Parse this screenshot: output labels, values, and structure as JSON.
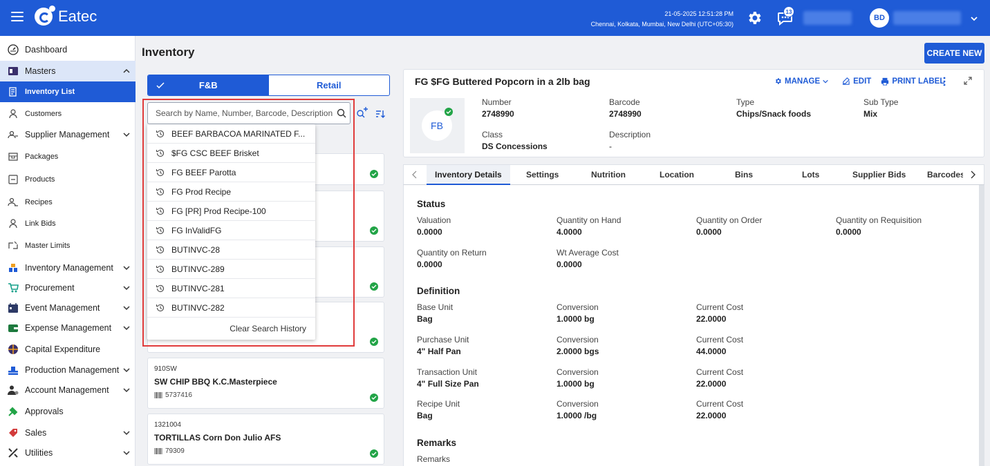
{
  "app": {
    "name": "Eatec",
    "datetime": "21-05-2025 12:51:28 PM",
    "timezone": "Chennai, Kolkata, Mumbai, New Delhi (UTC+05:30)",
    "notifications": "13",
    "user_initials": "BD"
  },
  "sidebar": {
    "items": [
      {
        "label": "Dashboard",
        "icon": "dashboard-icon"
      },
      {
        "label": "Masters",
        "icon": "masters-icon",
        "expanded": true
      },
      {
        "label": "Inventory List",
        "icon": "inventory-list-icon",
        "active": true
      },
      {
        "label": "Customers",
        "icon": "customers-icon"
      },
      {
        "label": "Supplier Management",
        "icon": "supplier-icon"
      },
      {
        "label": "Packages",
        "icon": "packages-icon"
      },
      {
        "label": "Products",
        "icon": "products-icon"
      },
      {
        "label": "Recipes",
        "icon": "recipes-icon"
      },
      {
        "label": "Link Bids",
        "icon": "link-bids-icon"
      },
      {
        "label": "Master Limits",
        "icon": "master-limits-icon"
      },
      {
        "label": "Inventory Management",
        "icon": "inventory-mgmt-icon"
      },
      {
        "label": "Procurement",
        "icon": "procurement-icon"
      },
      {
        "label": "Event Management",
        "icon": "event-icon"
      },
      {
        "label": "Expense Management",
        "icon": "expense-icon"
      },
      {
        "label": "Capital Expenditure",
        "icon": "capex-icon"
      },
      {
        "label": "Production Management",
        "icon": "production-icon"
      },
      {
        "label": "Account Management",
        "icon": "account-icon"
      },
      {
        "label": "Approvals",
        "icon": "approvals-icon"
      },
      {
        "label": "Sales",
        "icon": "sales-icon"
      },
      {
        "label": "Utilities",
        "icon": "utilities-icon"
      }
    ]
  },
  "main": {
    "title": "Inventory",
    "create_label": "CREATE NEW",
    "toggle": {
      "fb": "F&B",
      "retail": "Retail"
    },
    "search": {
      "placeholder": "Search by Name, Number, Barcode, Description",
      "value": ""
    },
    "search_history": [
      "BEEF BARBACOA MARINATED F...",
      "$FG CSC BEEF Brisket",
      "FG BEEF Parotta",
      "FG Prod Recipe",
      "FG [PR] Prod Recipe-100",
      "FG InValidFG",
      "BUTINVC-28",
      "BUTINVC-289",
      "BUTINVC-281",
      "BUTINVC-282"
    ],
    "clear_history": "Clear Search History",
    "cards": [
      {
        "number": "",
        "name": "",
        "barcode": ""
      },
      {
        "number": "",
        "name": "",
        "barcode": ""
      },
      {
        "number": "",
        "name": "",
        "barcode": ""
      },
      {
        "number": "",
        "name": "",
        "barcode": ""
      },
      {
        "number": "910SW",
        "name": "SW CHIP BBQ K.C.Masterpiece",
        "barcode": "5737416"
      },
      {
        "number": "1321004",
        "name": "TORTILLAS Corn Don Julio AFS",
        "barcode": "79309"
      }
    ]
  },
  "detail": {
    "title": "FG $FG Buttered Popcorn in a 2lb bag",
    "manage": "MANAGE",
    "edit": "EDIT",
    "print": "PRINT LABEL",
    "thumb": "FB",
    "number_label": "Number",
    "number": "2748990",
    "barcode_label": "Barcode",
    "barcode": "2748990",
    "type_label": "Type",
    "type": "Chips/Snack foods",
    "subtype_label": "Sub Type",
    "subtype": "Mix",
    "class_label": "Class",
    "class": "DS Concessions",
    "desc_label": "Description",
    "desc": "-",
    "tabs": [
      "Inventory Details",
      "Settings",
      "Nutrition",
      "Location",
      "Bins",
      "Lots",
      "Supplier Bids",
      "Barcodes"
    ],
    "status": {
      "title": "Status",
      "valuation_label": "Valuation",
      "valuation": "0.0000",
      "qoh_label": "Quantity on Hand",
      "qoh": "4.0000",
      "qoo_label": "Quantity on Order",
      "qoo": "0.0000",
      "qor_label": "Quantity on Requisition",
      "qor": "0.0000",
      "qret_label": "Quantity on Return",
      "qret": "0.0000",
      "wac_label": "Wt Average Cost",
      "wac": "0.0000"
    },
    "definition": {
      "title": "Definition",
      "rows": [
        {
          "unit_label": "Base Unit",
          "unit": "Bag",
          "conv_label": "Conversion",
          "conv": "1.0000 bg",
          "cost_label": "Current Cost",
          "cost": "22.0000"
        },
        {
          "unit_label": "Purchase Unit",
          "unit": "4\" Half Pan",
          "conv_label": "Conversion",
          "conv": "2.0000 bgs",
          "cost_label": "Current Cost",
          "cost": "44.0000"
        },
        {
          "unit_label": "Transaction Unit",
          "unit": "4\" Full Size Pan",
          "conv_label": "Conversion",
          "conv": "1.0000 bg",
          "cost_label": "Current Cost",
          "cost": "22.0000"
        },
        {
          "unit_label": "Recipe Unit",
          "unit": "Bag",
          "conv_label": "Conversion",
          "conv": "1.0000 /bg",
          "cost_label": "Current Cost",
          "cost": "22.0000"
        }
      ]
    },
    "remarks": {
      "title": "Remarks",
      "label": "Remarks"
    }
  },
  "colors": {
    "primary": "#1f5bd6",
    "highlight": "#e03b3b",
    "success": "#22a447"
  }
}
